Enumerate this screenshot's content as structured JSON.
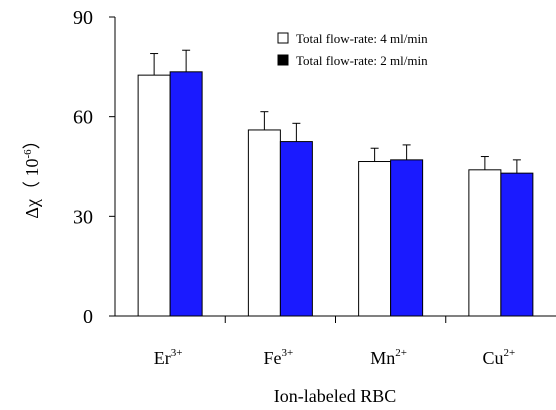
{
  "chart_data": {
    "type": "bar",
    "categories": [
      {
        "base": "Er",
        "sup": "3+"
      },
      {
        "base": "Fe",
        "sup": "3+"
      },
      {
        "base": "Mn",
        "sup": "2+"
      },
      {
        "base": "Cu",
        "sup": "2+"
      }
    ],
    "series": [
      {
        "name": "Total flow-rate: 4 ml/min",
        "color": "#ffffff",
        "values": [
          72.5,
          56,
          46.5,
          44
        ],
        "errors": [
          6.5,
          5.5,
          4,
          4
        ]
      },
      {
        "name": "Total flow-rate: 2 ml/min",
        "color": "#1a1aff",
        "values": [
          73.5,
          52.5,
          47,
          43
        ],
        "errors": [
          6.5,
          5.5,
          4.5,
          4
        ]
      }
    ],
    "ylim": [
      0,
      90
    ],
    "yticks": [
      0,
      30,
      60,
      90
    ],
    "xlabel": "Ion-labeled RBC",
    "ylabel": {
      "main": "Δχ（ 10",
      "exp": "-6",
      "close": "）"
    },
    "legend_position": "top-right",
    "grid": false
  }
}
